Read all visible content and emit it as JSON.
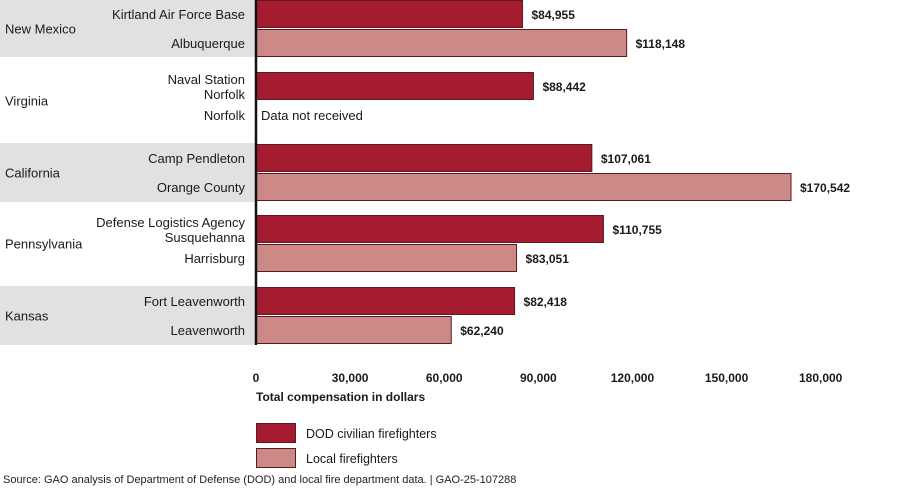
{
  "chart_data": {
    "type": "bar",
    "orientation": "horizontal",
    "title": "",
    "xlabel": "Total compensation in dollars",
    "ylabel": "",
    "xlim": [
      0,
      180000
    ],
    "xticks": [
      0,
      30000,
      60000,
      90000,
      120000,
      150000,
      180000
    ],
    "xtick_labels": [
      "0",
      "30,000",
      "60,000",
      "90,000",
      "120,000",
      "150,000",
      "180,000"
    ],
    "grid": false,
    "legend_position": "bottom",
    "series": [
      {
        "name": "DOD civilian firefighters",
        "color": "#a51c30"
      },
      {
        "name": "Local firefighters",
        "color": "#cc8a86"
      }
    ],
    "groups": [
      {
        "state": "New Mexico",
        "shaded": true,
        "rows": [
          {
            "label": [
              "Kirtland Air Force Base"
            ],
            "series": 0,
            "value": 84955,
            "value_label": "$84,955"
          },
          {
            "label": [
              "Albuquerque"
            ],
            "series": 1,
            "value": 118148,
            "value_label": "$118,148"
          }
        ]
      },
      {
        "state": "Virginia",
        "shaded": false,
        "rows": [
          {
            "label": [
              "Naval Station",
              "Norfolk"
            ],
            "series": 0,
            "value": 88442,
            "value_label": "$88,442"
          },
          {
            "label": [
              "Norfolk"
            ],
            "series": 1,
            "value": null,
            "value_label": "Data not received"
          }
        ]
      },
      {
        "state": "California",
        "shaded": true,
        "rows": [
          {
            "label": [
              "Camp Pendleton"
            ],
            "series": 0,
            "value": 107061,
            "value_label": "$107,061"
          },
          {
            "label": [
              "Orange County"
            ],
            "series": 1,
            "value": 170542,
            "value_label": "$170,542"
          }
        ]
      },
      {
        "state": "Pennsylvania",
        "shaded": false,
        "rows": [
          {
            "label": [
              "Defense Logistics Agency",
              "Susquehanna"
            ],
            "series": 0,
            "value": 110755,
            "value_label": "$110,755"
          },
          {
            "label": [
              "Harrisburg"
            ],
            "series": 1,
            "value": 83051,
            "value_label": "$83,051"
          }
        ]
      },
      {
        "state": "Kansas",
        "shaded": true,
        "rows": [
          {
            "label": [
              "Fort Leavenworth"
            ],
            "series": 0,
            "value": 82418,
            "value_label": "$82,418"
          },
          {
            "label": [
              "Leavenworth"
            ],
            "series": 1,
            "value": 62240,
            "value_label": "$62,240"
          }
        ]
      }
    ]
  },
  "source": "Source: GAO analysis of Department of Defense (DOD) and local fire department data.   |  GAO-25-107288"
}
